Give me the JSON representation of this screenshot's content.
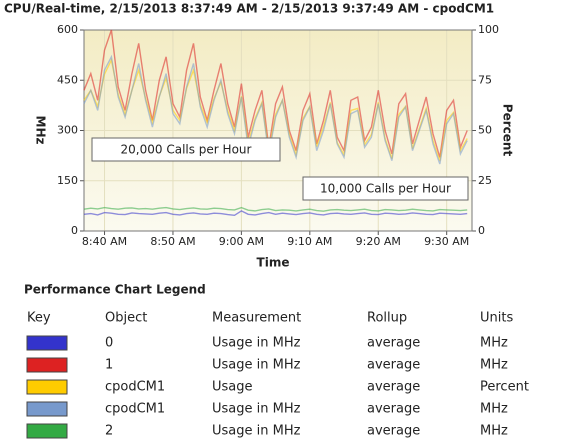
{
  "chart_data": {
    "type": "line",
    "title": "CPU/Real-time, 2/15/2013 8:37:49 AM - 2/15/2013 9:37:49 AM - cpodCM1",
    "xlabel": "Time",
    "ylabel": "MHz",
    "y2label": "Percent",
    "categories": [
      null,
      null,
      null,
      "8:40 AM",
      null,
      null,
      null,
      null,
      null,
      null,
      null,
      null,
      null,
      "8:50 AM",
      null,
      null,
      null,
      null,
      null,
      null,
      null,
      null,
      null,
      "9:00 AM",
      null,
      null,
      null,
      null,
      null,
      null,
      null,
      null,
      null,
      "9:10 AM",
      null,
      null,
      null,
      null,
      null,
      null,
      null,
      null,
      null,
      "9:20 AM",
      null,
      null,
      null,
      null,
      null,
      null,
      null,
      null,
      null,
      "9:30 AM",
      null,
      null,
      null
    ],
    "ylim": [
      0,
      600
    ],
    "yticks": [
      0,
      150,
      300,
      450,
      600
    ],
    "y2lim": [
      0,
      100
    ],
    "y2ticks": [
      0,
      25,
      50,
      75,
      100
    ],
    "grid": true,
    "series": [
      {
        "name": "0",
        "color": "#3333cc",
        "values": [
          50,
          52,
          48,
          55,
          53,
          50,
          49,
          54,
          52,
          51,
          50,
          53,
          55,
          50,
          48,
          52,
          54,
          51,
          50,
          53,
          52,
          49,
          47,
          60,
          50,
          48,
          52,
          55,
          50,
          53,
          51,
          49,
          52,
          54,
          50,
          48,
          52,
          53,
          51,
          50,
          52,
          54,
          50,
          49,
          53,
          52,
          50,
          51,
          54,
          52,
          50,
          49,
          53,
          52,
          51,
          50,
          52
        ]
      },
      {
        "name": "1",
        "color": "#dd2222",
        "values": [
          420,
          470,
          390,
          540,
          600,
          430,
          360,
          470,
          560,
          420,
          330,
          450,
          520,
          380,
          340,
          480,
          560,
          400,
          330,
          420,
          500,
          380,
          310,
          440,
          280,
          360,
          420,
          250,
          380,
          430,
          300,
          240,
          360,
          410,
          260,
          330,
          420,
          280,
          240,
          390,
          400,
          270,
          310,
          420,
          300,
          230,
          380,
          410,
          260,
          330,
          400,
          290,
          220,
          360,
          390,
          250,
          300
        ]
      },
      {
        "name": "cpodCM1",
        "color": "#ffcc00",
        "axis": "y2",
        "values": [
          65,
          70,
          62,
          78,
          85,
          68,
          58,
          70,
          80,
          66,
          54,
          67,
          76,
          60,
          55,
          71,
          80,
          63,
          54,
          66,
          74,
          60,
          50,
          67,
          44,
          56,
          64,
          40,
          58,
          65,
          48,
          38,
          56,
          62,
          42,
          52,
          64,
          44,
          38,
          60,
          61,
          43,
          48,
          64,
          46,
          36,
          58,
          62,
          41,
          51,
          61,
          45,
          35,
          55,
          59,
          40,
          46
        ]
      },
      {
        "name": "cpodCM1",
        "color": "#7799cc",
        "values": [
          380,
          420,
          360,
          480,
          520,
          400,
          340,
          420,
          500,
          390,
          310,
          400,
          470,
          350,
          320,
          430,
          500,
          370,
          310,
          390,
          450,
          350,
          290,
          400,
          250,
          330,
          380,
          230,
          340,
          390,
          280,
          220,
          330,
          370,
          240,
          300,
          380,
          260,
          220,
          350,
          360,
          250,
          280,
          380,
          270,
          210,
          340,
          370,
          240,
          300,
          360,
          260,
          200,
          320,
          350,
          230,
          270
        ]
      },
      {
        "name": "2",
        "color": "#33aa44",
        "values": [
          65,
          68,
          66,
          70,
          67,
          65,
          68,
          69,
          66,
          67,
          65,
          68,
          70,
          66,
          64,
          67,
          69,
          66,
          65,
          68,
          67,
          64,
          63,
          70,
          62,
          60,
          64,
          66,
          61,
          63,
          62,
          60,
          63,
          65,
          61,
          59,
          63,
          64,
          62,
          61,
          63,
          65,
          61,
          60,
          64,
          63,
          61,
          62,
          65,
          63,
          61,
          60,
          64,
          63,
          62,
          61,
          63
        ]
      }
    ],
    "annotations": [
      "20,000 Calls per Hour",
      "10,000 Calls per Hour"
    ]
  },
  "legend": {
    "title": "Performance Chart Legend",
    "columns": [
      "Key",
      "Object",
      "Measurement",
      "Rollup",
      "Units"
    ],
    "rows": [
      [
        "Usage in MHz",
        "average",
        "MHz"
      ],
      [
        "Usage in MHz",
        "average",
        "MHz"
      ],
      [
        "Usage",
        "average",
        "Percent"
      ],
      [
        "Usage in MHz",
        "average",
        "MHz"
      ],
      [
        "Usage in MHz",
        "average",
        "MHz"
      ]
    ]
  }
}
